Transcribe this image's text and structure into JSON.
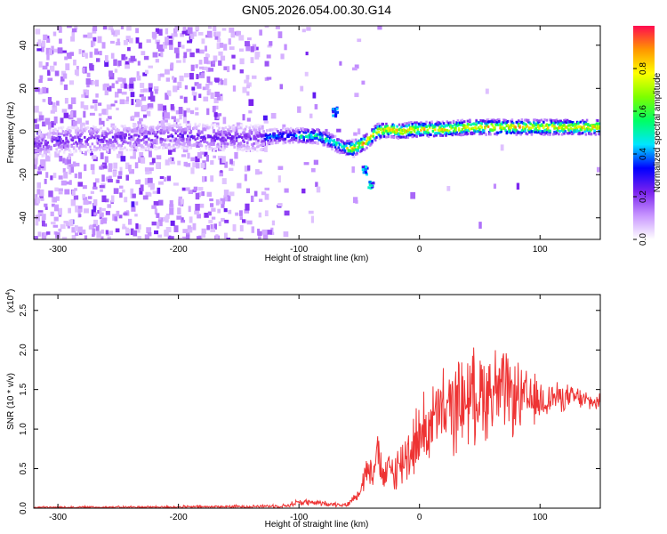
{
  "figure": {
    "title": "GN05.2026.054.00.30.G14"
  },
  "chart_data": [
    {
      "type": "heatmap",
      "title": "GN05.2026.054.00.30.G14",
      "xlabel": "Height of straight line (km)",
      "ylabel": "Frequency (Hz)",
      "xlim": [
        -320,
        150
      ],
      "ylim": [
        -50,
        49
      ],
      "xticks": [
        -300,
        -200,
        -100,
        0,
        100
      ],
      "yticks": [
        -40,
        -20,
        0,
        20,
        40
      ],
      "colorbar": {
        "label": "Normalized spectral amplitude",
        "range": [
          0,
          1
        ],
        "ticks": [
          0.0,
          0.2,
          0.4,
          0.6,
          0.8
        ],
        "colors": [
          "#ffffff",
          "#c896ff",
          "#7a22ee",
          "#0000ff",
          "#00e6ff",
          "#00ff64",
          "#7dff00",
          "#ffff00",
          "#ff9600",
          "#ff0a50"
        ]
      },
      "ridge": {
        "x": [
          -315,
          -300,
          -250,
          -200,
          -160,
          -130,
          -115,
          -100,
          -85,
          -75,
          -65,
          -55,
          -45,
          -35,
          -25,
          -15,
          -5,
          5,
          20,
          40,
          60,
          80,
          100,
          120,
          150
        ],
        "y": [
          -6,
          -4,
          -3,
          -2,
          -3,
          -3,
          -2,
          -2,
          -2,
          -4,
          -7,
          -8,
          -5,
          0,
          1,
          0,
          1,
          1,
          1,
          2,
          2,
          2,
          2,
          2,
          2
        ]
      },
      "blobs": [
        {
          "x": -45,
          "y": -18
        },
        {
          "x": -40,
          "y": -25
        },
        {
          "x": -70,
          "y": 9
        }
      ]
    },
    {
      "type": "line",
      "xlabel": "Height of straight line (km)",
      "ylabel": "SNR (10 * v/v)",
      "y_multiplier": "(x10",
      "y_multiplier_exp": "4",
      "y_multiplier_close": ")",
      "xlim": [
        -320,
        150
      ],
      "ylim": [
        0,
        27000
      ],
      "xticks": [
        -300,
        -200,
        -100,
        0,
        100
      ],
      "yticks": [
        0,
        5000,
        10000,
        15000,
        20000,
        25000
      ],
      "ytick_labels": [
        "0.0",
        "0.5",
        "1.0",
        "1.5",
        "2.0",
        "2.5"
      ],
      "series": [
        {
          "color": "#ee3333",
          "envelope": {
            "x": [
              -320,
              -200,
              -150,
              -110,
              -100,
              -80,
              -60,
              -50,
              -45,
              -40,
              -35,
              -30,
              -25,
              -20,
              -10,
              0,
              10,
              20,
              30,
              40,
              50,
              60,
              70,
              80,
              90,
              100,
              110,
              120,
              130,
              140,
              150
            ],
            "mean": [
              100,
              150,
              200,
              300,
              800,
              600,
              400,
              2000,
              4500,
              5000,
              7000,
              3500,
              5000,
              4500,
              7000,
              9000,
              11000,
              12000,
              13000,
              14000,
              14500,
              15000,
              14500,
              14000,
              13500,
              13500,
              14000,
              14000,
              14000,
              13500,
              13300
            ],
            "amp": [
              150,
              200,
              250,
              300,
              600,
              400,
              300,
              1000,
              2500,
              3000,
              3500,
              2500,
              3000,
              3500,
              4500,
              5500,
              6000,
              6500,
              7000,
              7000,
              7000,
              7500,
              6500,
              5500,
              4500,
              3500,
              2500,
              2000,
              1800,
              1500,
              1200
            ]
          }
        }
      ]
    }
  ]
}
